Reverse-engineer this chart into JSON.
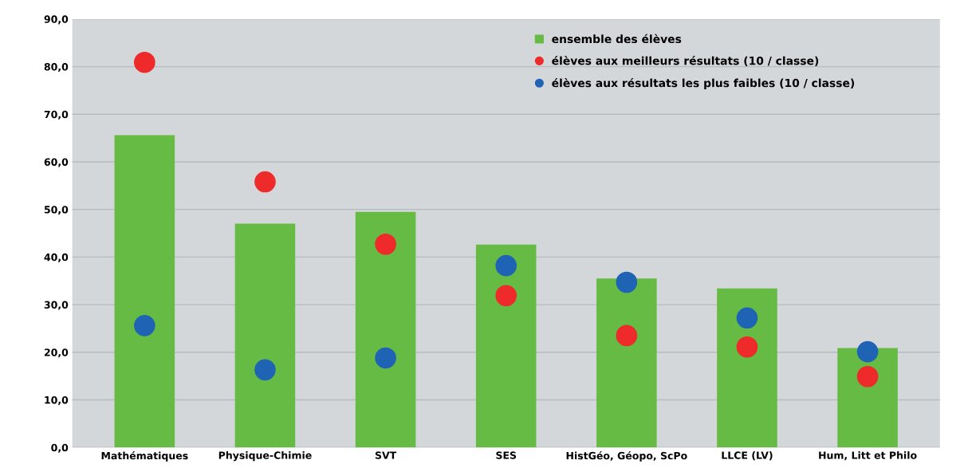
{
  "chart_data": {
    "type": "bar",
    "categories": [
      "Mathématiques",
      "Physique-Chimie",
      "SVT",
      "SES",
      "HistGéo, Géopo, ScPo",
      "LLCE (LV)",
      "Hum, Litt et Philo"
    ],
    "series": [
      {
        "name": "ensemble des élèves",
        "color": "#66bb44",
        "values": [
          65.6,
          47.0,
          49.5,
          42.6,
          35.5,
          33.4,
          20.9
        ]
      },
      {
        "name": "élèves aux meilleurs résultats (10 / classe)",
        "type": "scatter",
        "color": "#ee2a2a",
        "values": [
          80.9,
          55.8,
          42.7,
          31.9,
          23.5,
          21.1,
          14.9
        ]
      },
      {
        "name": "élèves aux résultats les plus faibles (10 / classe)",
        "type": "scatter",
        "color": "#1f64b4",
        "values": [
          25.6,
          16.3,
          18.8,
          38.2,
          34.7,
          27.2,
          20.1
        ]
      }
    ],
    "ylim": [
      0,
      90
    ],
    "yticks": [
      {
        "value": 0,
        "label": "0,0"
      },
      {
        "value": 10,
        "label": "10,0"
      },
      {
        "value": 20,
        "label": "20,0"
      },
      {
        "value": 30,
        "label": "30,0"
      },
      {
        "value": 40,
        "label": "40,0"
      },
      {
        "value": 50,
        "label": "50,0"
      },
      {
        "value": 60,
        "label": "60,0"
      },
      {
        "value": 70,
        "label": "70,0"
      },
      {
        "value": 80,
        "label": "80,0"
      },
      {
        "value": 90,
        "label": "90,0"
      }
    ],
    "grid": "y",
    "legend": "top right",
    "marker": "circle"
  }
}
